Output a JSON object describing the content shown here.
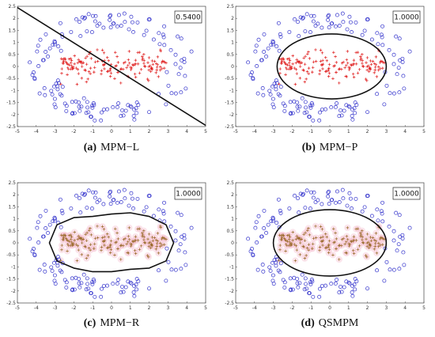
{
  "chart_data": [
    {
      "type": "scatter",
      "panel": "a",
      "caption_letter": "(a)",
      "caption_text": "MPM−L",
      "accuracy": "0.5400",
      "boundary": "line",
      "xlim": [
        -5,
        5
      ],
      "ylim": [
        -2.5,
        2.5
      ],
      "xticks": [
        "-5",
        "-4",
        "-3",
        "-2",
        "-1",
        "0",
        "1",
        "2",
        "3",
        "4",
        "5"
      ],
      "yticks": [
        "2.5",
        "2",
        "1.5",
        "1",
        "0.5",
        "0",
        "-0.5",
        "-1",
        "-1.5",
        "-2",
        "-2.5"
      ],
      "line": {
        "x": [
          -5,
          5
        ],
        "y": [
          2.45,
          -2.45
        ]
      },
      "grid": false,
      "shading": false
    },
    {
      "type": "scatter",
      "panel": "b",
      "caption_letter": "(b)",
      "caption_text": "MPM−P",
      "accuracy": "1.0000",
      "boundary": "ellipse",
      "xlim": [
        -5,
        5
      ],
      "ylim": [
        -2.5,
        2.5
      ],
      "xticks": [
        "-5",
        "-4",
        "-3",
        "-2",
        "-1",
        "0",
        "1",
        "2",
        "3",
        "4",
        "5"
      ],
      "yticks": [
        "2.5",
        "2",
        "1.5",
        "1",
        "0.5",
        "0",
        "-0.5",
        "-1",
        "-1.5",
        "-2",
        "-2.5"
      ],
      "ellipse": {
        "cx": 0.1,
        "cy": 0.0,
        "rx": 2.9,
        "ry": 1.35
      },
      "grid": false,
      "shading": false
    },
    {
      "type": "scatter",
      "panel": "c",
      "caption_letter": "(c)",
      "caption_text": "MPM−R",
      "accuracy": "1.0000",
      "boundary": "blob",
      "xlim": [
        -5,
        5
      ],
      "ylim": [
        -2.5,
        2.5
      ],
      "xticks": [
        "-5",
        "-4",
        "-3",
        "-2",
        "-1",
        "0",
        "1",
        "2",
        "3",
        "4",
        "5"
      ],
      "yticks": [
        "2.5",
        "2",
        "1.5",
        "1",
        "0.5",
        "0",
        "-0.5",
        "-1",
        "-1.5",
        "-2",
        "-2.5"
      ],
      "blob": {
        "x": [
          -3.3,
          -2.9,
          -2.0,
          -1.0,
          0.0,
          1.0,
          2.0,
          2.9,
          3.3,
          2.9,
          2.0,
          1.0,
          0.0,
          -1.0,
          -2.0,
          -2.9,
          -3.3
        ],
        "y": [
          0.0,
          0.75,
          1.05,
          1.1,
          1.2,
          1.25,
          1.1,
          0.75,
          0.0,
          -0.75,
          -1.05,
          -1.1,
          -1.2,
          -1.2,
          -1.05,
          -0.75,
          0.0
        ]
      },
      "grid": false,
      "shading": true
    },
    {
      "type": "scatter",
      "panel": "d",
      "caption_letter": "(d)",
      "caption_text": "QSMPM",
      "accuracy": "1.0000",
      "boundary": "ellipse",
      "xlim": [
        -5,
        5
      ],
      "ylim": [
        -2.5,
        2.5
      ],
      "xticks": [
        "-5",
        "-4",
        "-3",
        "-2",
        "-1",
        "0",
        "1",
        "2",
        "3",
        "4",
        "5"
      ],
      "yticks": [
        "2.5",
        "2",
        "1.5",
        "1",
        "0.5",
        "0",
        "-0.5",
        "-1",
        "-1.5",
        "-2",
        "-2.5"
      ],
      "ellipse": {
        "cx": 0.0,
        "cy": 0.0,
        "rx": 3.0,
        "ry": 1.38
      },
      "grid": false,
      "shading": true
    }
  ],
  "colors": {
    "outer_class": "#3333cc",
    "inner_class": "#e02020",
    "inner_class_shaded": "#9a6a2a",
    "boundary": "#111111",
    "shade": "#f6c6d4",
    "axis": "#444444"
  },
  "markers": {
    "outer_class": "circle",
    "inner_class": "plus"
  }
}
